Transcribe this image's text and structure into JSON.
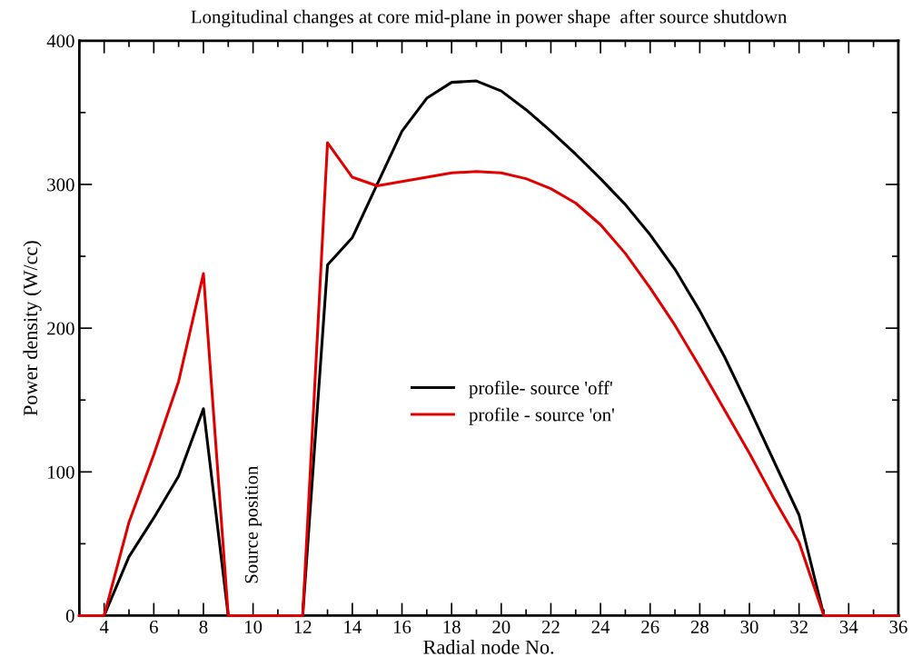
{
  "chart_data": {
    "type": "line",
    "title": "Longitudinal changes at core mid-plane in power shape  after source shutdown",
    "xlabel": "Radial node No.",
    "ylabel": "Power density (W/cc)",
    "x": [
      3,
      4,
      5,
      6,
      7,
      8,
      9,
      10,
      11,
      12,
      13,
      14,
      15,
      16,
      17,
      18,
      19,
      20,
      21,
      22,
      23,
      24,
      25,
      26,
      27,
      28,
      29,
      30,
      31,
      32,
      33,
      34,
      35,
      36
    ],
    "series": [
      {
        "name": "profile- source 'off'",
        "color": "#000000",
        "values": [
          0,
          0,
          41,
          68,
          97,
          144,
          0,
          0,
          0,
          0,
          244,
          263,
          300,
          337,
          360,
          371,
          372,
          365,
          352,
          337,
          321,
          304,
          286,
          265,
          241,
          212,
          180,
          144,
          107,
          70,
          0,
          0,
          0,
          0
        ]
      },
      {
        "name": "profile - source 'on'",
        "color": "#e00000",
        "values": [
          0,
          0,
          65,
          112,
          163,
          238,
          0,
          0,
          0,
          0,
          329,
          305,
          299,
          302,
          305,
          308,
          309,
          308,
          304,
          297,
          287,
          272,
          252,
          228,
          202,
          173,
          143,
          113,
          81,
          51,
          0,
          0,
          0,
          0
        ]
      }
    ],
    "xlim": [
      3,
      36
    ],
    "xticks": [
      4,
      6,
      8,
      10,
      12,
      14,
      16,
      18,
      20,
      22,
      24,
      26,
      28,
      30,
      32,
      34,
      36
    ],
    "ylim": [
      0,
      400
    ],
    "yticks": [
      0,
      100,
      200,
      300,
      400
    ],
    "annotations": [
      {
        "text": "Source position",
        "x": 10,
        "y": 0
      }
    ],
    "grid": false,
    "legend": "center",
    "marker": "none",
    "line_style": "solid"
  }
}
